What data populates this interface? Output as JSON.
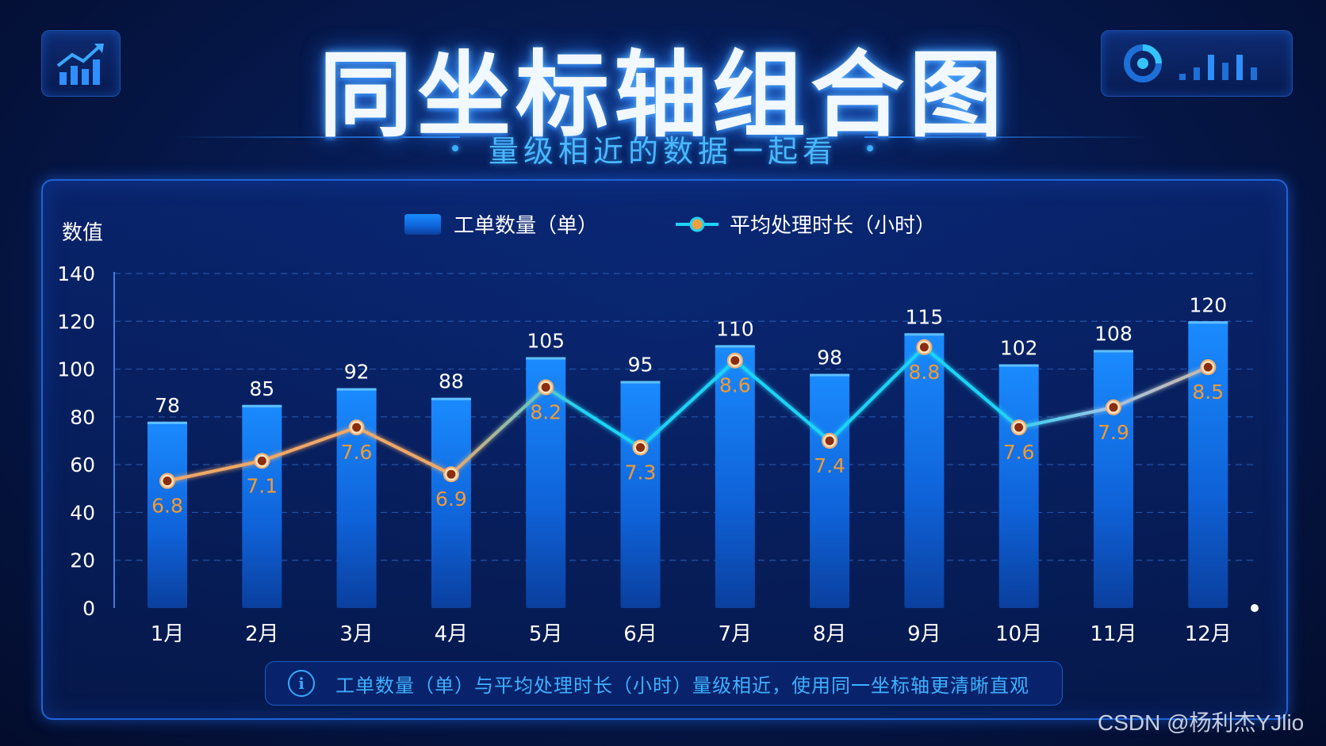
{
  "header": {
    "title": "同坐标轴组合图",
    "subtitle": "量级相近的数据一起看",
    "left_icon": "bar-chart-growth-icon",
    "right_icon": "donut-signal-icon"
  },
  "footer_note": {
    "icon": "info-icon",
    "icon_glyph": "i",
    "text": "工单数量（单）与平均处理时长（小时）量级相近，使用同一坐标轴更清晰直观"
  },
  "watermark": "CSDN @杨利杰YJlio",
  "colors": {
    "bar": "#0f7cf2",
    "line_warm": "#f0a868",
    "line_cool": "#1fd3f5",
    "label": "#f29a33"
  },
  "chart_data": {
    "type": "bar",
    "ylabel": "数值",
    "ylim": [
      0,
      140
    ],
    "yticks": [
      0,
      20,
      40,
      60,
      80,
      100,
      120,
      140
    ],
    "grid": true,
    "legend_position": "top-center",
    "categories": [
      "1月",
      "2月",
      "3月",
      "4月",
      "5月",
      "6月",
      "7月",
      "8月",
      "9月",
      "10月",
      "11月",
      "12月"
    ],
    "series": [
      {
        "name": "工单数量（单）",
        "type": "bar",
        "values": [
          78,
          85,
          92,
          88,
          105,
          95,
          110,
          98,
          115,
          102,
          108,
          120
        ]
      },
      {
        "name": "平均处理时长（小时）",
        "type": "line",
        "values": [
          6.8,
          7.1,
          7.6,
          6.9,
          8.2,
          7.3,
          8.6,
          7.4,
          8.8,
          7.6,
          7.9,
          8.5
        ]
      }
    ]
  }
}
